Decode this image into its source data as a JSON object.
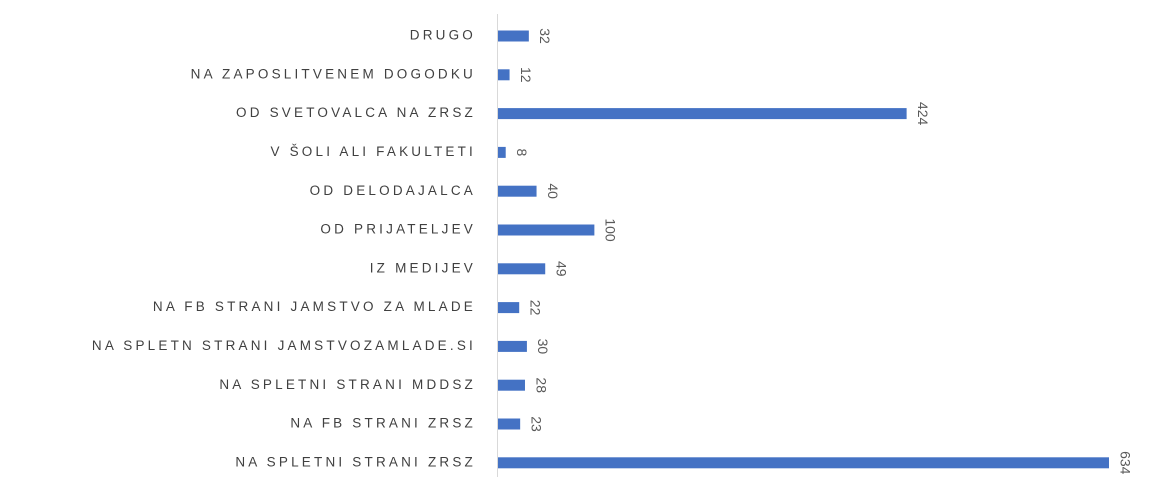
{
  "chart_data": {
    "type": "bar",
    "orientation": "horizontal",
    "categories": [
      "DRUGO",
      "NA ZAPOSLITVENEM DOGODKU",
      "OD SVETOVALCA NA ZRSZ",
      "V ŠOLI ALI FAKULTETI",
      "OD DELODAJALCA",
      "OD PRIJATELJEV",
      "IZ MEDIJEV",
      "NA FB STRANI JAMSTVO ZA MLADE",
      "NA SPLETN STRANI JAMSTVOZAMLADE.SI",
      "NA SPLETNI STRANI MDDSZ",
      "NA FB STRANI ZRSZ",
      "NA SPLETNI STRANI ZRSZ"
    ],
    "values": [
      32,
      12,
      424,
      8,
      40,
      100,
      49,
      22,
      30,
      28,
      23,
      634
    ],
    "color": "#4472c4"
  }
}
